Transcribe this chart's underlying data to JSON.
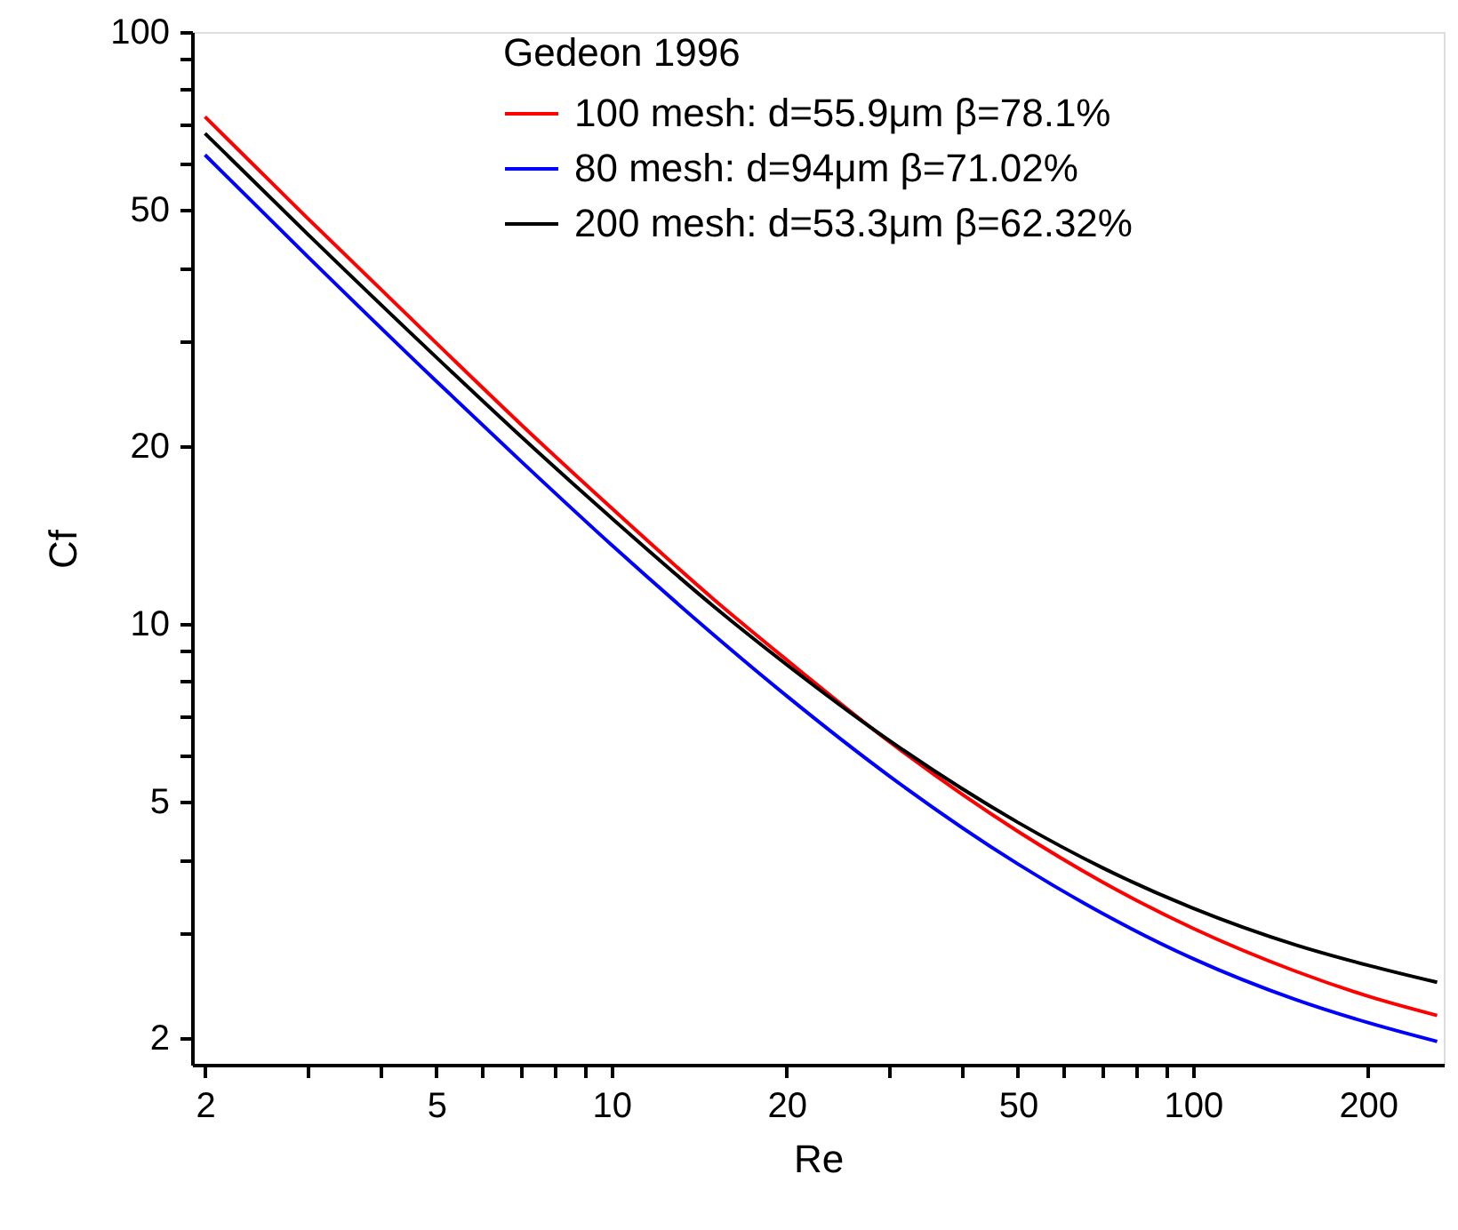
{
  "chart_data": {
    "type": "line",
    "xlabel": "Re",
    "ylabel": "Cf",
    "legend_title": "Gedeon 1996",
    "log": "xy",
    "grid": false,
    "legend": "top right",
    "line_style": "solid",
    "x": [
      2,
      3,
      5,
      7,
      10,
      15,
      20,
      30,
      50,
      70,
      100,
      150,
      200,
      263
    ],
    "xlim": [
      1.9,
      270
    ],
    "ylim": [
      1.8,
      100
    ],
    "xticks": [
      2,
      {
        "value": 3,
        "label": null
      },
      {
        "value": 4,
        "label": null
      },
      5,
      {
        "value": 6,
        "label": null
      },
      {
        "value": 7,
        "label": null
      },
      {
        "value": 8,
        "label": null
      },
      {
        "value": 9,
        "label": null
      },
      10,
      20,
      {
        "value": 30,
        "label": null
      },
      {
        "value": 40,
        "label": null
      },
      50,
      {
        "value": 60,
        "label": null
      },
      {
        "value": 70,
        "label": null
      },
      {
        "value": 80,
        "label": null
      },
      {
        "value": 90,
        "label": null
      },
      100,
      200
    ],
    "yticks": [
      2,
      {
        "value": 3,
        "label": null
      },
      {
        "value": 4,
        "label": null
      },
      5,
      {
        "value": 6,
        "label": null
      },
      {
        "value": 7,
        "label": null
      },
      {
        "value": 8,
        "label": null
      },
      {
        "value": 9,
        "label": null
      },
      10,
      20,
      {
        "value": 30,
        "label": null
      },
      {
        "value": 40,
        "label": null
      },
      50,
      {
        "value": 60,
        "label": null
      },
      {
        "value": 70,
        "label": null
      },
      {
        "value": 80,
        "label": null
      },
      {
        "value": 90,
        "label": null
      },
      100
    ],
    "series": [
      {
        "name": "100 mesh: d=55.9μm β=78.1%",
        "color": "#ff0000",
        "values": [
          71.9,
          48.5,
          29.8,
          21.7,
          15.7,
          11.0,
          8.7,
          6.33,
          4.46,
          3.66,
          3.06,
          2.59,
          2.35,
          2.18
        ]
      },
      {
        "name": "80 mesh: d=94μm β=71.02%",
        "color": "#0000ff",
        "values": [
          62.0,
          41.8,
          25.7,
          18.8,
          13.6,
          9.58,
          7.56,
          5.54,
          3.93,
          3.24,
          2.72,
          2.32,
          2.12,
          1.97
        ]
      },
      {
        "name": "200 mesh: d=53.3μm β=62.32%",
        "color": "#000000",
        "values": [
          67.4,
          45.6,
          28.2,
          20.7,
          15.1,
          10.7,
          8.54,
          6.36,
          4.62,
          3.87,
          3.31,
          2.87,
          2.65,
          2.48
        ]
      }
    ]
  }
}
